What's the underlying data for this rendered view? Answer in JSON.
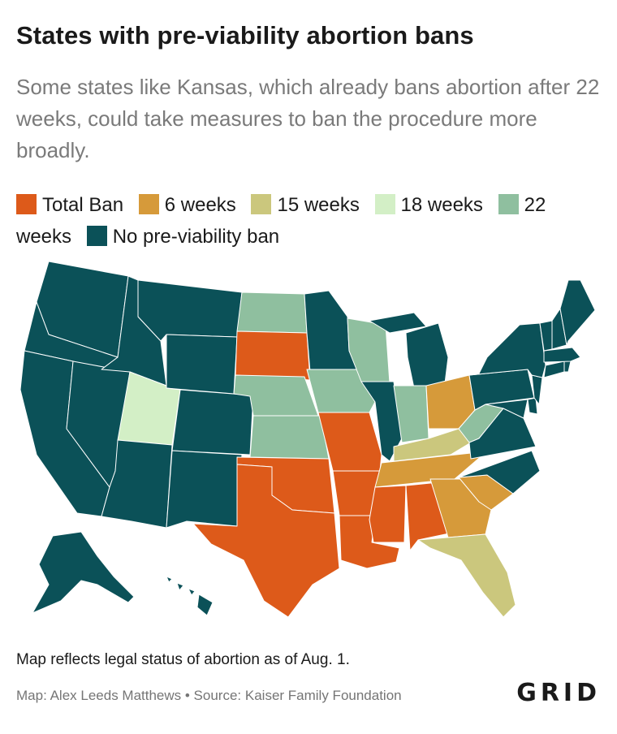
{
  "header": {
    "title": "States with pre-viability abortion bans",
    "subtitle": "Some states like Kansas, which already bans abortion after 22 weeks, could take measures to ban the procedure more broadly."
  },
  "legend": [
    {
      "label": "Total Ban",
      "color": "#dd5a1a",
      "key": "total"
    },
    {
      "label": "6 weeks",
      "color": "#d69a3a",
      "key": "w6"
    },
    {
      "label": "15 weeks",
      "color": "#cbc77d",
      "key": "w15"
    },
    {
      "label": "18 weeks",
      "color": "#d3efc6",
      "key": "w18"
    },
    {
      "label": "22 weeks",
      "color": "#8fbf9f",
      "key": "w22"
    },
    {
      "label": "No pre-viability ban",
      "color": "#0b5158",
      "key": "none"
    }
  ],
  "map_data": {
    "type": "choropleth",
    "region": "United States",
    "states": {
      "total": [
        "South Dakota",
        "Missouri",
        "Oklahoma",
        "Arkansas",
        "Texas",
        "Louisiana",
        "Mississippi",
        "Alabama"
      ],
      "w6": [
        "Ohio",
        "Tennessee",
        "Georgia",
        "South Carolina"
      ],
      "w15": [
        "Kentucky",
        "Florida"
      ],
      "w18": [
        "Utah"
      ],
      "w22": [
        "North Dakota",
        "Nebraska",
        "Kansas",
        "Iowa",
        "Wisconsin",
        "Indiana",
        "West Virginia"
      ],
      "none": [
        "Washington",
        "Oregon",
        "California",
        "Nevada",
        "Idaho",
        "Montana",
        "Wyoming",
        "Colorado",
        "Arizona",
        "New Mexico",
        "Minnesota",
        "Illinois",
        "Michigan",
        "Pennsylvania",
        "New York",
        "Virginia",
        "North Carolina",
        "Maryland",
        "Delaware",
        "New Jersey",
        "Connecticut",
        "Rhode Island",
        "Massachusetts",
        "Vermont",
        "New Hampshire",
        "Maine",
        "Alaska",
        "Hawaii"
      ]
    }
  },
  "footer": {
    "note": "Map reflects legal status of abortion as of Aug. 1.",
    "credit": "Map: Alex Leeds Matthews • Source: Kaiser Family Foundation",
    "logo": "GRID"
  }
}
